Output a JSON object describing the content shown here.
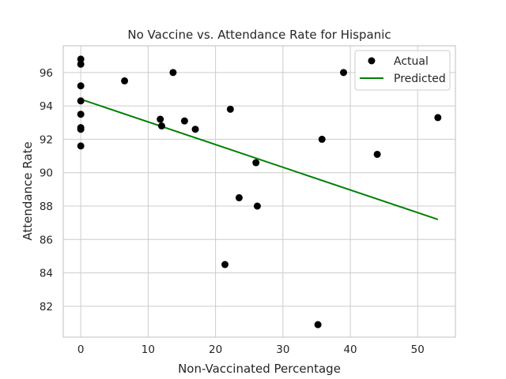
{
  "chart_data": {
    "type": "scatter",
    "title": "No Vaccine vs. Attendance Rate for Hispanic",
    "xlabel": "Non-Vaccinated Percentage",
    "ylabel": "Attendance Rate",
    "xlim": [
      -2.6,
      55.6
    ],
    "ylim": [
      80.15,
      97.6
    ],
    "xticks": [
      0,
      10,
      20,
      30,
      40,
      50
    ],
    "yticks": [
      82,
      84,
      86,
      88,
      90,
      92,
      94,
      96
    ],
    "grid": true,
    "legend_position": "top-right",
    "series": [
      {
        "name": "Actual",
        "kind": "scatter",
        "color": "#000000",
        "points": [
          [
            0,
            96.8
          ],
          [
            0,
            96.5
          ],
          [
            0,
            95.2
          ],
          [
            0,
            94.3
          ],
          [
            0,
            93.5
          ],
          [
            0,
            92.7
          ],
          [
            0,
            92.6
          ],
          [
            0,
            91.6
          ],
          [
            6.5,
            95.5
          ],
          [
            11.8,
            93.2
          ],
          [
            12.0,
            92.8
          ],
          [
            13.7,
            96.0
          ],
          [
            15.4,
            93.1
          ],
          [
            17.0,
            92.6
          ],
          [
            21.4,
            84.5
          ],
          [
            22.2,
            93.8
          ],
          [
            23.5,
            88.5
          ],
          [
            26.0,
            90.6
          ],
          [
            26.2,
            88.0
          ],
          [
            35.2,
            80.9
          ],
          [
            35.8,
            92.0
          ],
          [
            39.0,
            96.0
          ],
          [
            44.0,
            91.1
          ],
          [
            53.0,
            93.3
          ]
        ]
      },
      {
        "name": "Predicted",
        "kind": "line",
        "color": "#008000",
        "points": [
          [
            0,
            94.4
          ],
          [
            53.0,
            87.2
          ]
        ]
      }
    ]
  }
}
